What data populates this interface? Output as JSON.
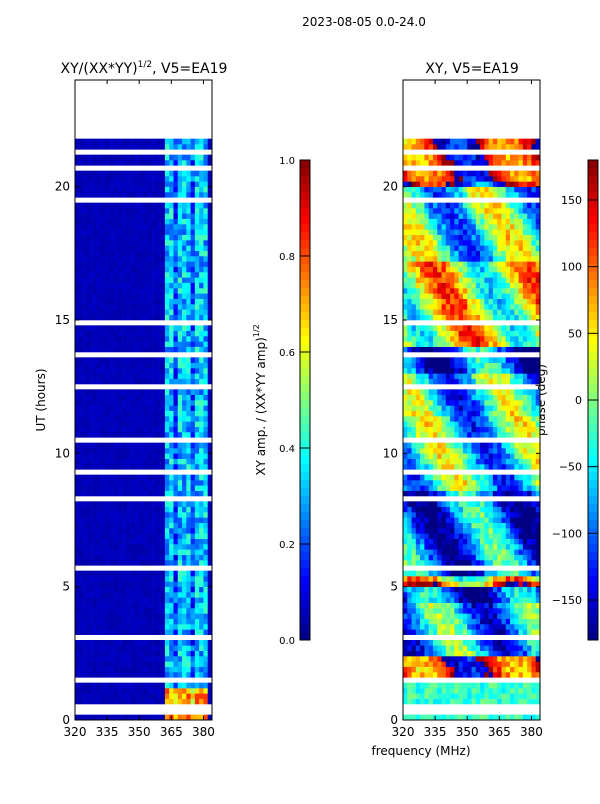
{
  "figure_title": "2023-08-05 0.0-24.0",
  "chart_data": [
    {
      "type": "heatmap",
      "title_main": "XY/(XX*YY)",
      "title_sup": "1/2",
      "title_tail": ", V5=EA19",
      "xlabel": "",
      "ylabel": "UT (hours)",
      "xlim": [
        320,
        384
      ],
      "ylim": [
        0,
        24
      ],
      "xticks": [
        320,
        335,
        350,
        365,
        380
      ],
      "yticks": [
        0,
        5,
        10,
        15,
        20
      ],
      "data_time_range": [
        0,
        21.6
      ],
      "colorbar": {
        "label_main": "XY amp. / (XX*YY amp)",
        "label_sup": "1/2",
        "range": [
          0,
          1
        ],
        "ticks": [
          "0.0",
          "0.2",
          "0.4",
          "0.6",
          "0.8",
          "1.0"
        ],
        "colormap": "jet"
      },
      "bright_band_MHz": [
        361,
        381
      ],
      "typical_value_background": 0.05,
      "typical_value_band": 0.35
    },
    {
      "type": "heatmap",
      "title": "XY, V5=EA19",
      "xlabel": "frequency (MHz)",
      "ylabel": "",
      "xlim": [
        320,
        384
      ],
      "ylim": [
        0,
        24
      ],
      "xticks": [
        320,
        335,
        350,
        365,
        380
      ],
      "yticks": [
        0,
        5,
        10,
        15,
        20
      ],
      "data_time_range": [
        0,
        21.6
      ],
      "colorbar": {
        "label": "phase (deg)",
        "range": [
          -180,
          180
        ],
        "ticks": [
          "−150",
          "−100",
          "−50",
          "0",
          "50",
          "100",
          "150"
        ],
        "colormap": "jet"
      }
    }
  ],
  "flagged_gaps_hours": [
    0.15,
    0.4,
    1.3,
    1.45,
    2.9,
    3.05,
    3.7,
    4.3,
    4.9,
    5.3,
    5.6,
    6.7,
    7.3,
    8.2,
    8.9,
    9.2,
    10.1,
    10.4,
    11.3,
    12.4,
    12.7,
    13.6,
    14.5,
    14.8,
    15.9,
    16.9,
    17.3,
    18.1,
    18.7,
    19.4,
    19.9,
    20.3,
    20.6,
    20.9,
    21.2
  ]
}
